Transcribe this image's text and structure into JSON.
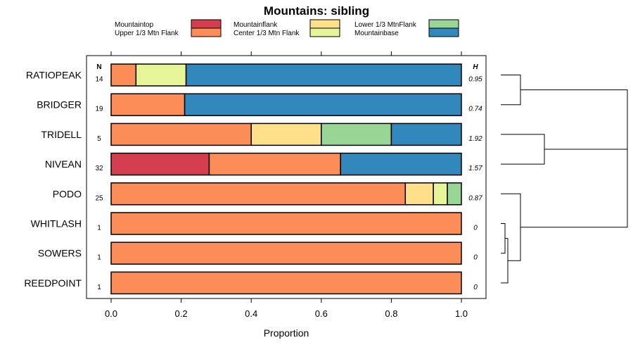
{
  "chart_data": {
    "type": "bar",
    "orientation": "horizontal",
    "stacked": true,
    "title": "Mountains: sibling",
    "xlabel": "Proportion",
    "ylabel": "",
    "xlim": [
      0,
      1
    ],
    "xticks": [
      "0.0",
      "0.2",
      "0.4",
      "0.6",
      "0.8",
      "1.0"
    ],
    "n_header": "N",
    "h_header": "H",
    "legend_position": "top",
    "categories": [
      "RATIOPEAK",
      "BRIDGER",
      "TRIDELL",
      "NIVEAN",
      "PODO",
      "WHITLASH",
      "SOWERS",
      "REEDPOINT"
    ],
    "n_values": [
      "14",
      "19",
      "5",
      "32",
      "25",
      "1",
      "1",
      "1"
    ],
    "h_values": [
      "0.95",
      "0.74",
      "1.92",
      "1.57",
      "0.87",
      "0",
      "0",
      "0"
    ],
    "series": [
      {
        "name": "Mountaintop",
        "color": "#d53e4f",
        "values": [
          0,
          0,
          0,
          0.28,
          0,
          0,
          0,
          0
        ]
      },
      {
        "name": "Upper 1/3 Mtn Flank",
        "color": "#fc8d59",
        "values": [
          0.071,
          0.21,
          0.4,
          0.375,
          0.84,
          1.0,
          1.0,
          1.0
        ]
      },
      {
        "name": "Mountainflank",
        "color": "#fee08b",
        "values": [
          0,
          0,
          0.2,
          0,
          0.08,
          0,
          0,
          0
        ]
      },
      {
        "name": "Center 1/3 Mtn Flank",
        "color": "#e6f598",
        "values": [
          0.143,
          0,
          0,
          0,
          0.04,
          0,
          0,
          0
        ]
      },
      {
        "name": "Lower 1/3 MtnFlank",
        "color": "#99d594",
        "values": [
          0,
          0,
          0.2,
          0,
          0.04,
          0,
          0,
          0
        ]
      },
      {
        "name": "Mountainbase",
        "color": "#3288bd",
        "values": [
          0.786,
          0.79,
          0.2,
          0.345,
          0,
          0,
          0,
          0
        ]
      }
    ],
    "dendrogram": {
      "merges": [
        [
          "RATIOPEAK",
          "BRIDGER"
        ],
        [
          "TRIDELL",
          "NIVEAN"
        ],
        [
          "WHITLASH",
          "SOWERS"
        ],
        [
          "WHITLASH+SOWERS",
          "REEDPOINT"
        ],
        [
          "PODO",
          "WHITLASH+SOWERS+REEDPOINT"
        ],
        [
          "RATIOPEAK+BRIDGER",
          "TRIDELL+NIVEAN"
        ],
        [
          "RATIOPEAK+BRIDGER+TRIDELL+NIVEAN",
          "PODO+WHITLASH+SOWERS+REEDPOINT"
        ]
      ]
    }
  }
}
